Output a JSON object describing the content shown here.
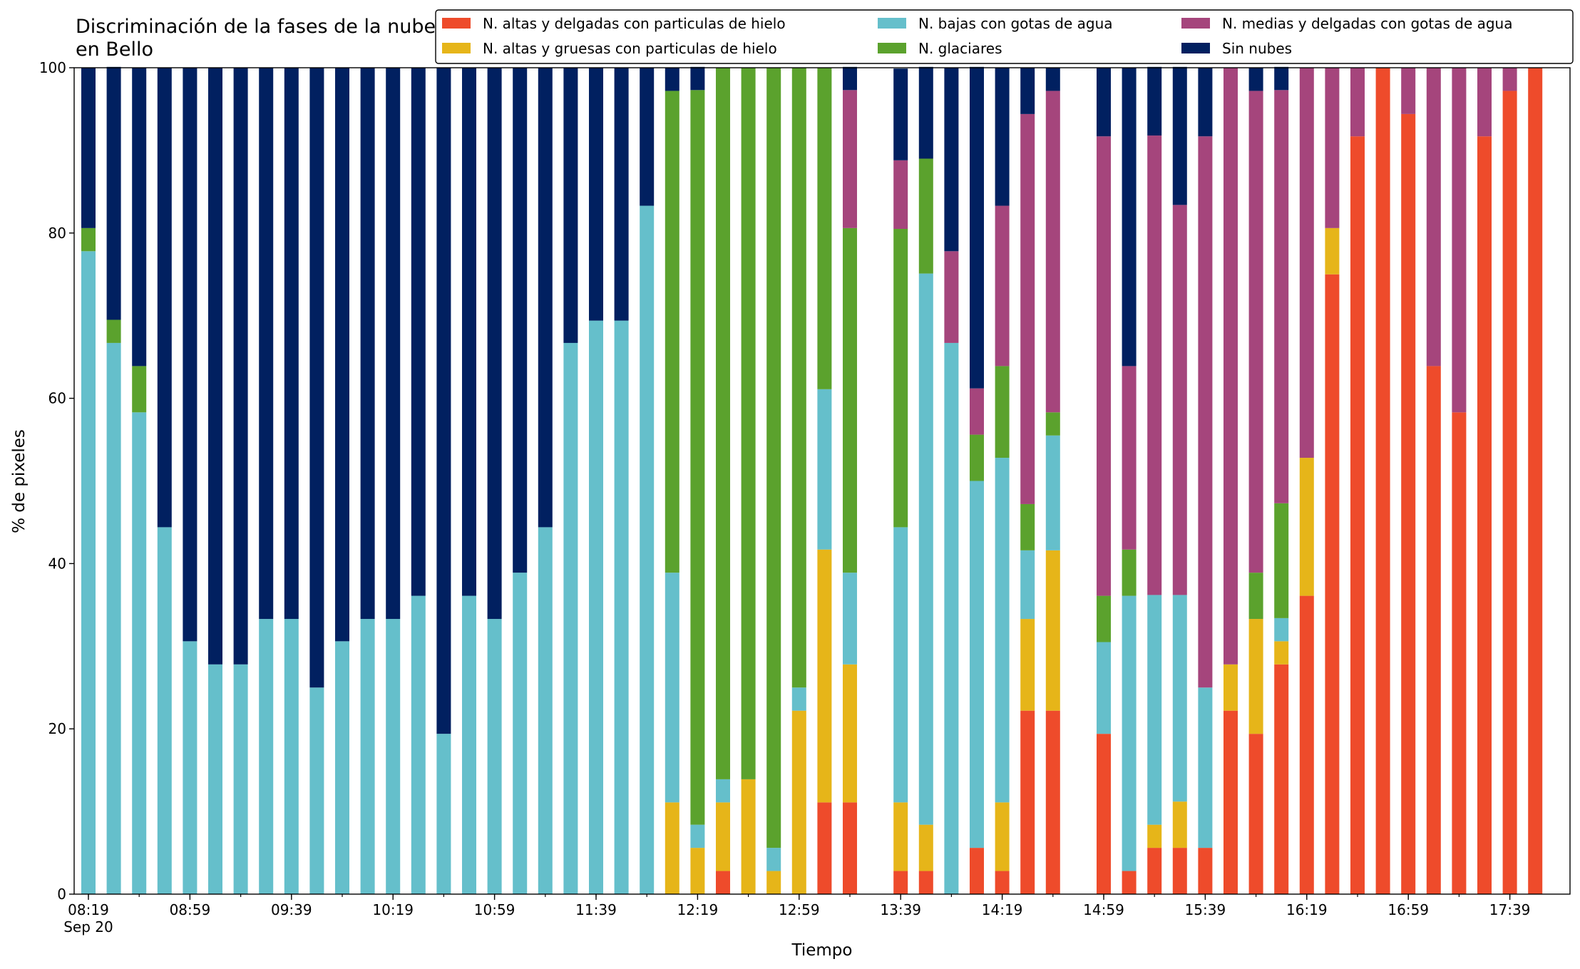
{
  "chart_data": {
    "type": "stacked_bar",
    "title": "Discriminación de la fases de la nube en Bello",
    "xlabel": "Tiempo",
    "ylabel": "% de pixeles",
    "x": [
      "08:19",
      "08:29",
      "08:39",
      "08:49",
      "08:59",
      "09:09",
      "09:19",
      "09:29",
      "09:39",
      "09:49",
      "09:59",
      "10:09",
      "10:19",
      "10:29",
      "10:39",
      "10:49",
      "10:59",
      "11:09",
      "11:19",
      "11:29",
      "11:39",
      "11:49",
      "11:59",
      "12:09",
      "12:19",
      "12:29",
      "12:39",
      "12:49",
      "12:59",
      "13:09",
      "13:19",
      "13:29",
      "13:39",
      "13:49",
      "13:59",
      "14:09",
      "14:19",
      "14:29",
      "14:39",
      "14:49",
      "14:59",
      "15:09",
      "15:19",
      "15:29",
      "15:39",
      "15:49",
      "15:59",
      "16:09",
      "16:19",
      "16:29",
      "16:39",
      "16:49",
      "16:59",
      "17:09",
      "17:19",
      "17:29",
      "17:39",
      "17:49"
    ],
    "xticks": [
      "08:19",
      "08:59",
      "09:39",
      "10:19",
      "10:59",
      "11:39",
      "12:19",
      "12:59",
      "13:39",
      "14:19",
      "14:59",
      "15:39",
      "16:19",
      "16:59",
      "17:39"
    ],
    "x_date_label": "Sep 20",
    "ylim": [
      0,
      100
    ],
    "yticks": [
      0,
      20,
      40,
      60,
      80,
      100
    ],
    "series": [
      {
        "name": "N. altas y delgadas con particulas de hielo",
        "color": "#ee4b2b",
        "values": [
          0,
          0,
          0,
          0,
          0,
          0,
          0,
          0,
          0,
          0,
          0,
          0,
          0,
          0,
          0,
          0,
          0,
          0,
          0,
          0,
          0,
          0,
          0,
          0,
          0,
          2.8,
          0,
          0,
          0,
          11.1,
          11.1,
          null,
          2.8,
          2.8,
          0,
          5.6,
          2.8,
          22.2,
          22.2,
          null,
          19.4,
          2.8,
          5.6,
          5.6,
          5.6,
          22.2,
          19.4,
          27.8,
          36.1,
          75,
          91.7,
          100,
          94.4,
          63.9,
          58.3,
          91.7,
          97.2,
          100
        ]
      },
      {
        "name": "N. altas y gruesas con particulas de hielo",
        "color": "#e6b519",
        "values": [
          0,
          0,
          0,
          0,
          0,
          0,
          0,
          0,
          0,
          0,
          0,
          0,
          0,
          0,
          0,
          0,
          0,
          0,
          0,
          0,
          0,
          0,
          0,
          11.1,
          5.6,
          8.3,
          13.9,
          2.8,
          22.2,
          30.6,
          16.7,
          null,
          8.3,
          5.6,
          0,
          0,
          8.3,
          11.1,
          19.4,
          null,
          0,
          0,
          2.8,
          5.6,
          0,
          5.6,
          13.9,
          2.8,
          16.7,
          5.6,
          0,
          0,
          0,
          0,
          0,
          0,
          0,
          0
        ]
      },
      {
        "name": "N. bajas con gotas de agua",
        "color": "#65bfcb",
        "values": [
          77.8,
          66.7,
          58.3,
          44.4,
          30.6,
          27.8,
          27.8,
          33.3,
          33.3,
          25,
          30.6,
          33.3,
          33.3,
          36.1,
          19.4,
          36.1,
          33.3,
          38.9,
          44.4,
          66.7,
          69.4,
          69.4,
          83.3,
          27.8,
          2.8,
          2.8,
          0,
          2.8,
          2.8,
          19.4,
          11.1,
          null,
          33.3,
          66.7,
          66.7,
          44.4,
          41.7,
          8.3,
          13.9,
          null,
          11.1,
          33.3,
          27.8,
          25,
          19.4,
          0,
          0,
          2.8,
          0,
          0,
          0,
          0,
          0,
          0,
          0,
          0,
          0,
          0
        ]
      },
      {
        "name": "N. glaciares",
        "color": "#5ba22d",
        "values": [
          2.8,
          2.8,
          5.6,
          0,
          0,
          0,
          0,
          0,
          0,
          0,
          0,
          0,
          0,
          0,
          0,
          0,
          0,
          0,
          0,
          0,
          0,
          0,
          0,
          58.3,
          88.9,
          86.1,
          86.1,
          94.4,
          75,
          38.9,
          41.7,
          null,
          36.1,
          13.9,
          0,
          5.6,
          11.1,
          5.6,
          2.8,
          null,
          5.6,
          5.6,
          0,
          0,
          0,
          0,
          5.6,
          13.9,
          0,
          0,
          0,
          0,
          0,
          0,
          0,
          0,
          0,
          0
        ]
      },
      {
        "name": "N. medias y delgadas con gotas de agua",
        "color": "#a5457c",
        "values": [
          0,
          0,
          0,
          0,
          0,
          0,
          0,
          0,
          0,
          0,
          0,
          0,
          0,
          0,
          0,
          0,
          0,
          0,
          0,
          0,
          0,
          0,
          0,
          0,
          0,
          0,
          0,
          0,
          0,
          0,
          16.7,
          null,
          8.3,
          0,
          11.1,
          5.6,
          19.4,
          47.2,
          38.9,
          null,
          55.6,
          22.2,
          55.6,
          47.2,
          66.7,
          72.2,
          58.3,
          50,
          47.2,
          19.4,
          8.3,
          0,
          5.6,
          36.1,
          41.7,
          8.3,
          2.8,
          0
        ]
      },
      {
        "name": "Sin nubes",
        "color": "#012060",
        "values": [
          19.4,
          30.6,
          36.1,
          55.6,
          69.4,
          72.2,
          72.2,
          66.7,
          66.7,
          75,
          69.4,
          66.7,
          66.7,
          63.9,
          80.6,
          63.9,
          66.7,
          61.1,
          55.6,
          33.3,
          30.6,
          30.6,
          16.7,
          2.8,
          2.8,
          0,
          0,
          0,
          0,
          0,
          2.8,
          null,
          11.1,
          11.1,
          22.2,
          38.9,
          16.7,
          5.6,
          2.8,
          null,
          8.3,
          36.1,
          8.3,
          16.7,
          8.3,
          0,
          2.8,
          2.8,
          0,
          0,
          0,
          0,
          0,
          0,
          0,
          0,
          0,
          0
        ]
      }
    ]
  }
}
